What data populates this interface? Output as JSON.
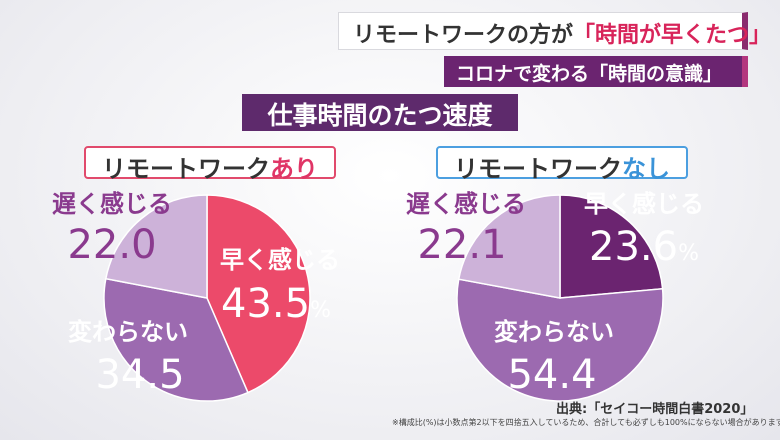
{
  "headline": {
    "prefix": "リモートワークの方が",
    "accent": "「時間が早くたつ」"
  },
  "subheadline": "コロナで変わる「時間の意識」",
  "section_title": "仕事時間のたつ速度",
  "colors": {
    "fast_left": "#ec4a6a",
    "fast_right": "#6b2470",
    "neither": "#9c6ab0",
    "slow": "#cdb2d9",
    "label_purple": "#8a3a8e",
    "label_white": "#ffffff"
  },
  "chart_data": [
    {
      "type": "pie",
      "title_prefix": "リモートワーク",
      "title_accent": "あり",
      "slices": [
        {
          "label": "早く感じる",
          "value": 43.5,
          "value_text": "43.5",
          "unit": "%"
        },
        {
          "label": "変わらない",
          "value": 34.5,
          "value_text": "34.5",
          "unit": ""
        },
        {
          "label": "遅く感じる",
          "value": 22.0,
          "value_text": "22.0",
          "unit": ""
        }
      ]
    },
    {
      "type": "pie",
      "title_prefix": "リモートワーク",
      "title_accent": "なし",
      "slices": [
        {
          "label": "早く感じる",
          "value": 23.6,
          "value_text": "23.6",
          "unit": "%"
        },
        {
          "label": "変わらない",
          "value": 54.4,
          "value_text": "54.4",
          "unit": ""
        },
        {
          "label": "遅く感じる",
          "value": 22.1,
          "value_text": "22.1",
          "unit": ""
        }
      ]
    }
  ],
  "source": "出典:「セイコー時間白書2020」",
  "footnote": "※構成比(%)は小数点第2以下を四捨五入しているため、合計しても必ずしも100%にならない場合があります。"
}
